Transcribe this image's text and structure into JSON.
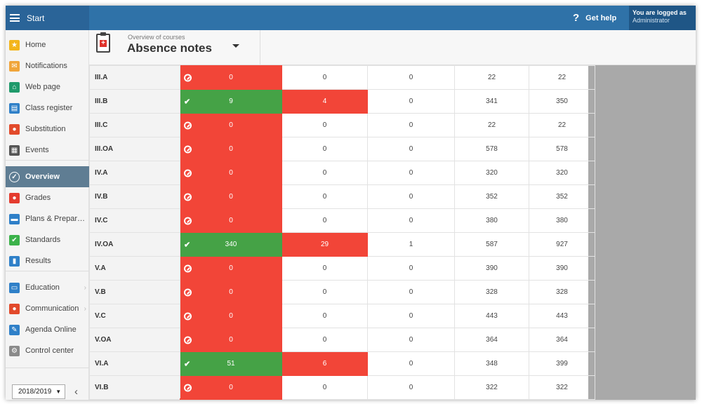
{
  "topbar": {
    "start_label": "Start",
    "help_label": "Get help",
    "help_icon": "?",
    "logged_line1": "You are logged as",
    "logged_line2": "Administrator"
  },
  "sidebar": {
    "items": [
      {
        "label": "Home",
        "icon": "star-icon",
        "color": "#f3b51c"
      },
      {
        "label": "Notifications",
        "icon": "envelope-icon",
        "color": "#f0a53a"
      },
      {
        "label": "Web page",
        "icon": "house-icon",
        "color": "#1f9a6b"
      },
      {
        "label": "Class register",
        "icon": "book-icon",
        "color": "#2f80c8"
      },
      {
        "label": "Substitution",
        "icon": "person-icon",
        "color": "#e24a2b"
      },
      {
        "label": "Events",
        "icon": "calendar-icon",
        "color": "#555555"
      },
      {
        "label": "Overview",
        "icon": "check-icon",
        "color": "#ffffff"
      },
      {
        "label": "Grades",
        "icon": "grade-icon",
        "color": "#e43c2f"
      },
      {
        "label": "Plans & Prepar…",
        "icon": "briefcase-icon",
        "color": "#2f80c8"
      },
      {
        "label": "Standards",
        "icon": "shield-icon",
        "color": "#3bb24a"
      },
      {
        "label": "Results",
        "icon": "bars-icon",
        "color": "#2f80c8"
      },
      {
        "label": "Education",
        "icon": "book-open-icon",
        "color": "#2f80c8"
      },
      {
        "label": "Communication",
        "icon": "chat-icon",
        "color": "#e24a2b"
      },
      {
        "label": "Agenda Online",
        "icon": "pen-icon",
        "color": "#2f80c8"
      },
      {
        "label": "Control center",
        "icon": "gear-icon",
        "color": "#8a8a8a"
      }
    ],
    "year": "2018/2019",
    "collapse_glyph": "‹"
  },
  "header": {
    "overline": "Overview of courses",
    "title": "Absence notes"
  },
  "table": {
    "rows": [
      {
        "name": "III.A",
        "status": "no",
        "c1": "0",
        "c2": "0",
        "c3": "0",
        "c4": "22",
        "c5": "22"
      },
      {
        "name": "III.B",
        "status": "ok",
        "c1": "9",
        "c2": "4",
        "c3": "0",
        "c4": "341",
        "c5": "350"
      },
      {
        "name": "III.C",
        "status": "no",
        "c1": "0",
        "c2": "0",
        "c3": "0",
        "c4": "22",
        "c5": "22"
      },
      {
        "name": "III.OA",
        "status": "no",
        "c1": "0",
        "c2": "0",
        "c3": "0",
        "c4": "578",
        "c5": "578"
      },
      {
        "name": "IV.A",
        "status": "no",
        "c1": "0",
        "c2": "0",
        "c3": "0",
        "c4": "320",
        "c5": "320"
      },
      {
        "name": "IV.B",
        "status": "no",
        "c1": "0",
        "c2": "0",
        "c3": "0",
        "c4": "352",
        "c5": "352"
      },
      {
        "name": "IV.C",
        "status": "no",
        "c1": "0",
        "c2": "0",
        "c3": "0",
        "c4": "380",
        "c5": "380"
      },
      {
        "name": "IV.OA",
        "status": "ok",
        "c1": "340",
        "c2": "29",
        "c3": "1",
        "c4": "587",
        "c5": "927"
      },
      {
        "name": "V.A",
        "status": "no",
        "c1": "0",
        "c2": "0",
        "c3": "0",
        "c4": "390",
        "c5": "390"
      },
      {
        "name": "V.B",
        "status": "no",
        "c1": "0",
        "c2": "0",
        "c3": "0",
        "c4": "328",
        "c5": "328"
      },
      {
        "name": "V.C",
        "status": "no",
        "c1": "0",
        "c2": "0",
        "c3": "0",
        "c4": "443",
        "c5": "443"
      },
      {
        "name": "V.OA",
        "status": "no",
        "c1": "0",
        "c2": "0",
        "c3": "0",
        "c4": "364",
        "c5": "364"
      },
      {
        "name": "VI.A",
        "status": "ok",
        "c1": "51",
        "c2": "6",
        "c3": "0",
        "c4": "348",
        "c5": "399"
      },
      {
        "name": "VI.B",
        "status": "no",
        "c1": "0",
        "c2": "0",
        "c3": "0",
        "c4": "322",
        "c5": "322"
      }
    ]
  },
  "colors": {
    "topbar": "#2f72a8",
    "red": "#f24538",
    "green": "#45a246",
    "active_nav": "#5f7d93"
  }
}
